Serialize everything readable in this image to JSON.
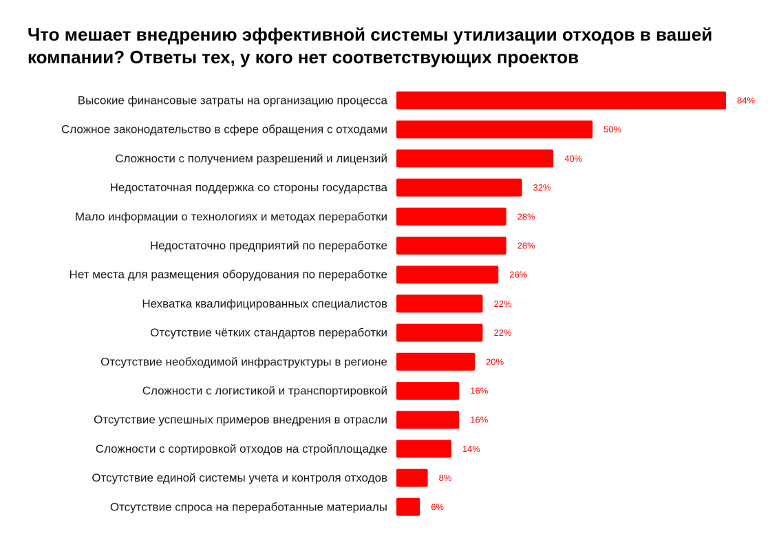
{
  "title": "Что мешает внедрению эффективной системы утилизации отходов в вашей компании? Ответы тех, у кого нет соответствующих проектов",
  "colors": {
    "bar": "#ff0000",
    "value_label": "#ff0000",
    "category_label": "#1a1a1a"
  },
  "chart_data": {
    "type": "bar",
    "orientation": "horizontal",
    "title": "Что мешает внедрению эффективной системы утилизации отходов в вашей компании? Ответы тех, у кого нет соответствующих проектов",
    "xlabel": "",
    "ylabel": "",
    "unit": "%",
    "xlim": [
      0,
      84
    ],
    "grid": false,
    "legend": "none",
    "categories": [
      "Высокие финансовые затраты на организацию процесса",
      "Сложное законодательство в сфере обращения с отходами",
      "Сложности с получением разрешений и лицензий",
      "Недостаточная поддержка со стороны государства",
      "Мало информации о технологиях и методах переработки",
      "Недостаточно предприятий по переработке",
      "Нет места для размещения оборудования по переработке",
      "Нехватка квалифицированных специалистов",
      "Отсутствие чётких стандартов переработки",
      "Отсутствие необходимой инфраструктуры в регионе",
      "Сложности с логистикой и транспортировкой",
      "Отсутствие успешных примеров внедрения в отрасли",
      "Сложности с сортировкой отходов на стройплощадке",
      "Отсутствие единой системы учета и контроля отходов",
      "Отсутствие спроса на переработанные материалы"
    ],
    "values": [
      84,
      50,
      40,
      32,
      28,
      28,
      26,
      22,
      22,
      20,
      16,
      16,
      14,
      8,
      6
    ],
    "value_labels": [
      "84%",
      "50%",
      "40%",
      "32%",
      "28%",
      "28%",
      "26%",
      "22%",
      "22%",
      "20%",
      "16%",
      "16%",
      "14%",
      "8%",
      "6%"
    ]
  }
}
